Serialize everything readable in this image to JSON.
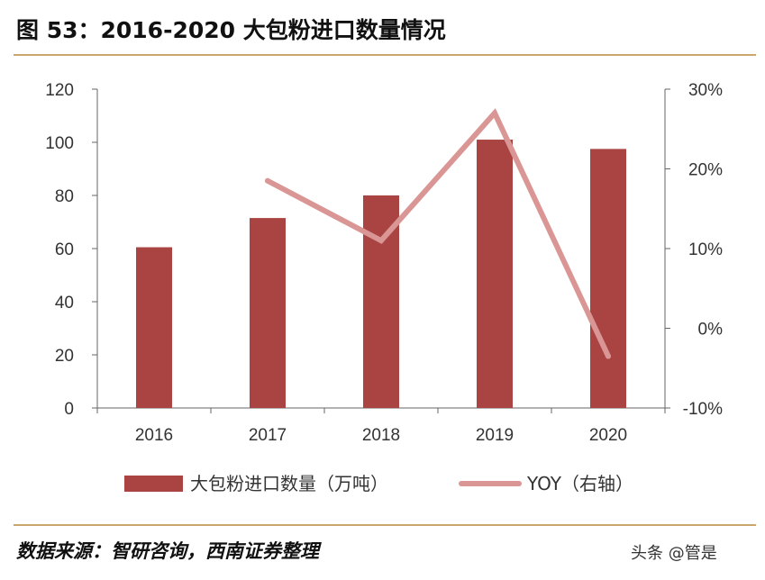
{
  "header": {
    "title": "图 53：2016-2020 大包粉进口数量情况"
  },
  "footer": {
    "source": "数据来源：智研咨询，西南证券整理",
    "watermark": "头条 @管是"
  },
  "colors": {
    "bar": "#a94442",
    "line": "#d99694",
    "axis": "#666666",
    "rule": "#c9a66b"
  },
  "chart_data": {
    "type": "bar",
    "categories": [
      "2016",
      "2017",
      "2018",
      "2019",
      "2020"
    ],
    "series": [
      {
        "name": "大包粉进口数量（万吨）",
        "type": "bar",
        "axis": "left",
        "values": [
          60.5,
          71.5,
          80,
          101,
          97.5
        ]
      },
      {
        "name": "YOY（右轴）",
        "type": "line",
        "axis": "right",
        "values": [
          null,
          18.5,
          11,
          27,
          -3.5
        ]
      }
    ],
    "ylim": [
      0,
      120
    ],
    "yticks": [
      "0",
      "20",
      "40",
      "60",
      "80",
      "100",
      "120"
    ],
    "y2lim": [
      -10,
      30
    ],
    "y2ticks": [
      "-10%",
      "0%",
      "10%",
      "20%",
      "30%"
    ],
    "legend": [
      "大包粉进口数量（万吨）",
      "YOY（右轴）"
    ],
    "legend_position": "bottom"
  }
}
